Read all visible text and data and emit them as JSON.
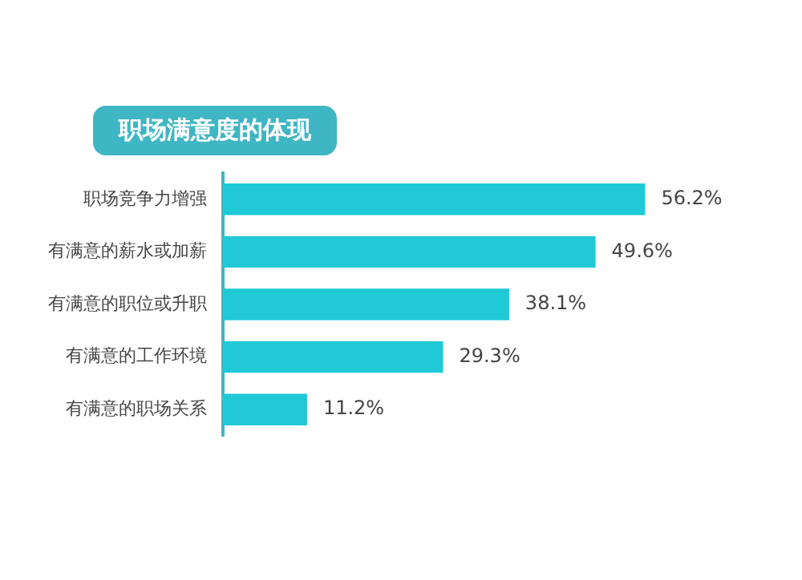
{
  "chart_data": {
    "type": "bar",
    "orientation": "horizontal",
    "title": "职场满意度的体现",
    "categories": [
      "职场竞争力增强",
      "有满意的薪水或加薪",
      "有满意的职位或升职",
      "有满意的工作环境",
      "有满意的职场关系"
    ],
    "values": [
      56.2,
      49.6,
      38.1,
      29.3,
      11.2
    ],
    "value_labels": [
      "56.2%",
      "49.6%",
      "38.1%",
      "29.3%",
      "11.2%"
    ],
    "color": "#1fc9d6"
  }
}
